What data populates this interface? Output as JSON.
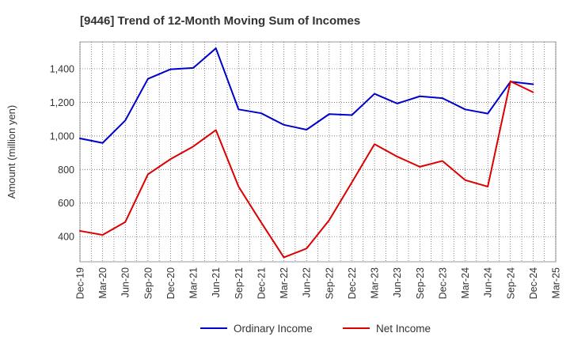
{
  "chart_data": {
    "type": "line",
    "title": "[9446]  Trend of 12-Month Moving Sum of Incomes",
    "xlabel": "",
    "ylabel": "Amount (million yen)",
    "categories": [
      "Dec-19",
      "Mar-20",
      "Jun-20",
      "Sep-20",
      "Dec-20",
      "Mar-21",
      "Jun-21",
      "Sep-21",
      "Dec-21",
      "Mar-22",
      "Jun-22",
      "Sep-22",
      "Dec-22",
      "Mar-23",
      "Jun-23",
      "Sep-23",
      "Dec-23",
      "Mar-24",
      "Jun-24",
      "Sep-24",
      "Dec-24",
      "Mar-25"
    ],
    "ylim": [
      250,
      1560
    ],
    "yticks": [
      400,
      600,
      800,
      1000,
      1200,
      1400
    ],
    "ytick_labels": [
      "400",
      "600",
      "800",
      "1,000",
      "1,200",
      "1,400"
    ],
    "grid": true,
    "legend_position": "bottom-center",
    "series": [
      {
        "name": "Ordinary Income",
        "color": "#0000cc",
        "values": [
          985,
          958,
          1092,
          1340,
          1397,
          1405,
          1522,
          1158,
          1135,
          1066,
          1037,
          1130,
          1124,
          1251,
          1193,
          1236,
          1225,
          1158,
          1133,
          1323,
          1308,
          null
        ]
      },
      {
        "name": "Net Income",
        "color": "#dd0000",
        "values": [
          434,
          410,
          487,
          771,
          862,
          937,
          1035,
          698,
          484,
          276,
          329,
          498,
          723,
          951,
          877,
          816,
          851,
          737,
          698,
          1325,
          1260,
          null
        ]
      }
    ]
  }
}
